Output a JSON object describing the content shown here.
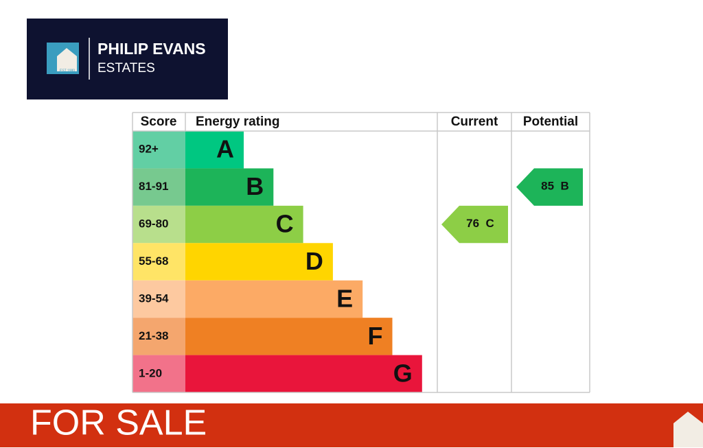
{
  "logo": {
    "name": "PHILIP EVANS",
    "subtitle": "ESTATES",
    "established": "EST 1980"
  },
  "table": {
    "headers": [
      "Score",
      "Energy rating",
      "Current",
      "Potential"
    ],
    "bands": [
      {
        "score": "92+",
        "rating": "A",
        "color": "#00c781",
        "score_color": "#62cfa4"
      },
      {
        "score": "81-91",
        "rating": "B",
        "color": "#1db459",
        "score_color": "#77c98f"
      },
      {
        "score": "69-80",
        "rating": "C",
        "color": "#8dce46",
        "score_color": "#b8df8c"
      },
      {
        "score": "55-68",
        "rating": "D",
        "color": "#ffd500",
        "score_color": "#ffe466"
      },
      {
        "score": "39-54",
        "rating": "E",
        "color": "#fcaa65",
        "score_color": "#fdc9a0"
      },
      {
        "score": "21-38",
        "rating": "F",
        "color": "#ef8023",
        "score_color": "#f4a66e"
      },
      {
        "score": "1-20",
        "rating": "G",
        "color": "#e9153b",
        "score_color": "#f2728a"
      }
    ],
    "current": {
      "score": 76,
      "rating": "C"
    },
    "potential": {
      "score": 85,
      "rating": "B"
    }
  },
  "banner": {
    "text": "FOR SALE"
  }
}
